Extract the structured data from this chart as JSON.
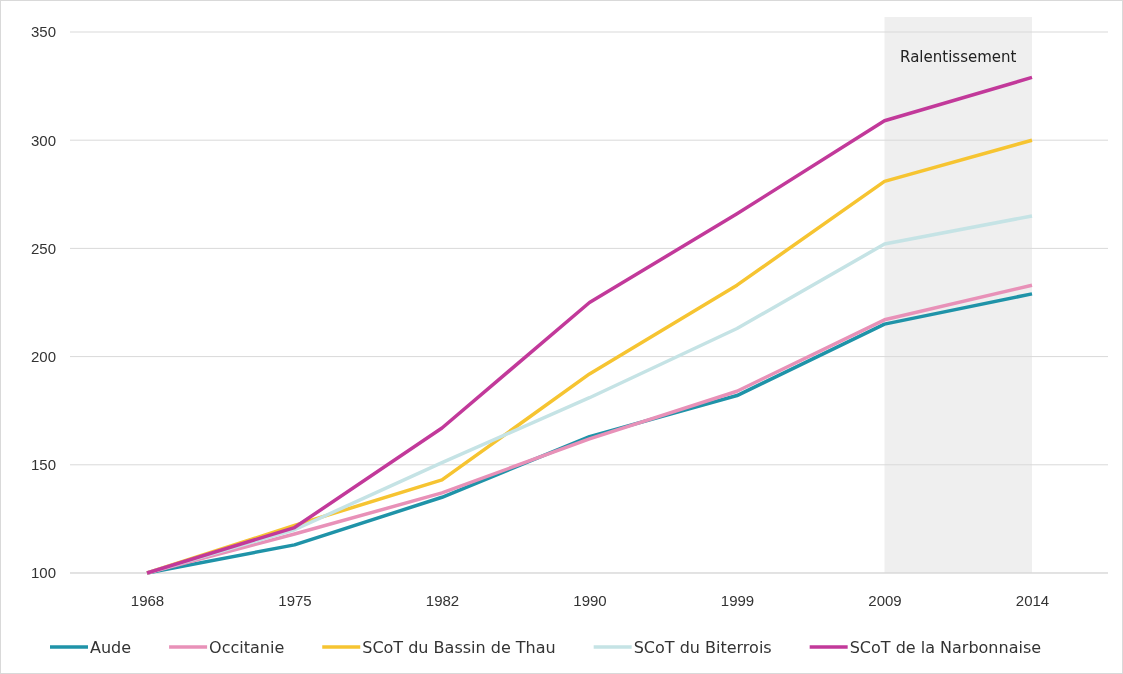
{
  "chart_data": {
    "type": "line",
    "categories": [
      "1968",
      "1975",
      "1982",
      "1990",
      "1999",
      "2009",
      "2014"
    ],
    "series": [
      {
        "name": "Aude",
        "color": "#1f93a8",
        "values": [
          100,
          113,
          135,
          163,
          182,
          215,
          229
        ]
      },
      {
        "name": "Occitanie",
        "color": "#e891b8",
        "values": [
          100,
          118,
          137,
          162,
          184,
          217,
          233
        ]
      },
      {
        "name": "SCoT du Bassin de Thau",
        "color": "#f6c431",
        "values": [
          100,
          122,
          143,
          192,
          233,
          281,
          300
        ]
      },
      {
        "name": "SCoT du Biterrois",
        "color": "#c5e3e5",
        "values": [
          100,
          120,
          151,
          181,
          213,
          252,
          265
        ]
      },
      {
        "name": "SCoT de la Narbonnaise",
        "color": "#c2399a",
        "values": [
          100,
          121,
          167,
          225,
          266,
          309,
          329
        ]
      }
    ],
    "ylim": [
      100,
      350
    ],
    "yticks": [
      100,
      150,
      200,
      250,
      300,
      350
    ],
    "grid": "y",
    "legend": "bottom",
    "marker": "none",
    "line_style": "solid",
    "bands": [
      {
        "axis": "x",
        "from": "2009",
        "to": "2014",
        "label": "Ralentissement",
        "color": "#efefef"
      }
    ]
  }
}
